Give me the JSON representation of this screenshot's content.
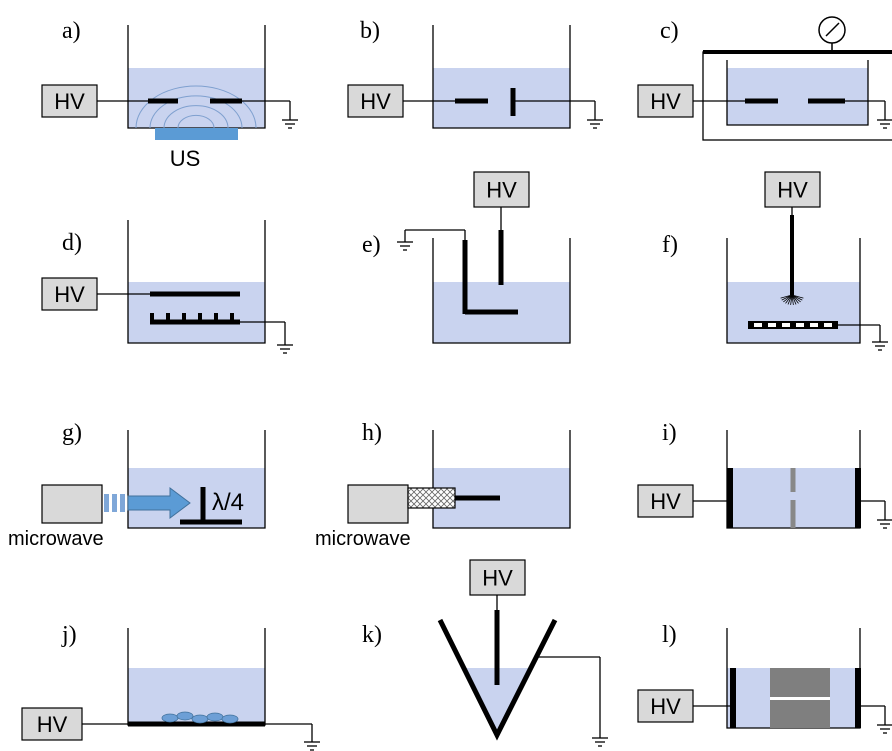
{
  "panels": [
    {
      "label": "a)",
      "hv": "HV",
      "source": "US"
    },
    {
      "label": "b)",
      "hv": "HV"
    },
    {
      "label": "c)",
      "hv": "HV"
    },
    {
      "label": "d)",
      "hv": "HV"
    },
    {
      "label": "e)",
      "hv": "HV"
    },
    {
      "label": "f)",
      "hv": "HV"
    },
    {
      "label": "g)",
      "source": "microwave",
      "wavelength": "λ/4"
    },
    {
      "label": "h)",
      "source": "microwave"
    },
    {
      "label": "i)",
      "hv": "HV"
    },
    {
      "label": "j)",
      "hv": "HV"
    },
    {
      "label": "k)",
      "hv": "HV"
    },
    {
      "label": "l)",
      "hv": "HV"
    }
  ]
}
